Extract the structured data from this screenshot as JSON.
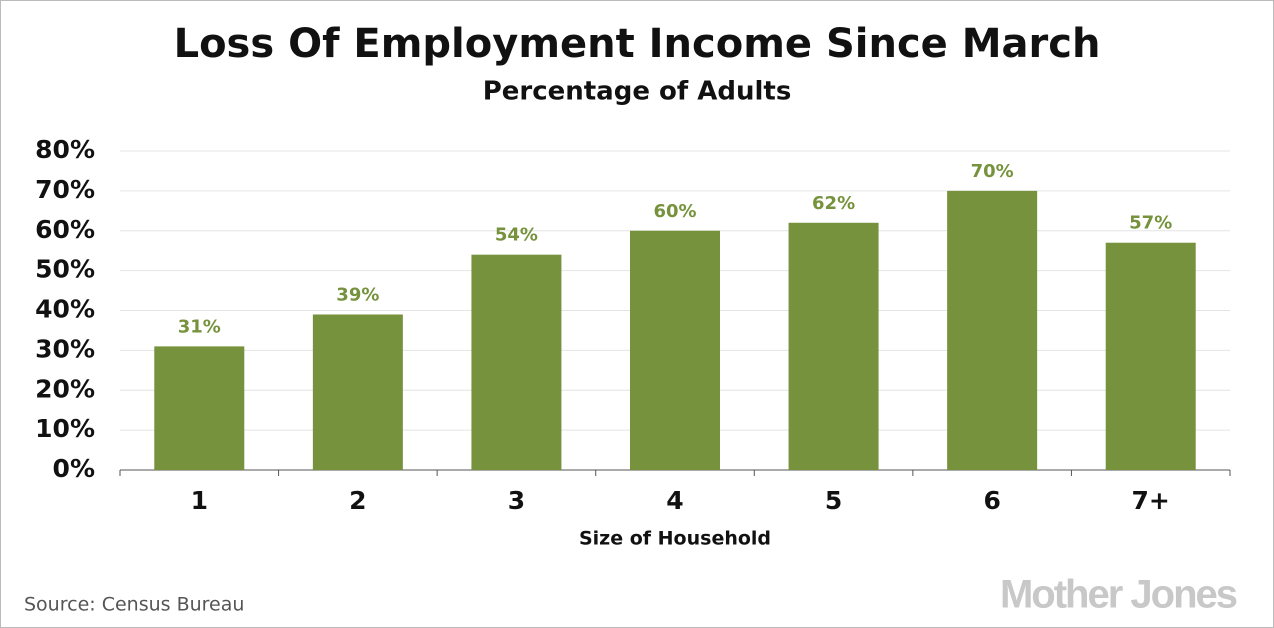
{
  "chart_data": {
    "type": "bar",
    "title": "Loss Of Employment Income Since March",
    "subtitle": "Percentage of Adults",
    "categories": [
      "1",
      "2",
      "3",
      "4",
      "5",
      "6",
      "7+"
    ],
    "values": [
      31,
      39,
      54,
      60,
      62,
      70,
      57
    ],
    "value_labels": [
      "31%",
      "39%",
      "54%",
      "60%",
      "62%",
      "70%",
      "57%"
    ],
    "color": "#76923c",
    "ylim": [
      0,
      80
    ],
    "yticks": [
      {
        "value": 0,
        "label": "0%"
      },
      {
        "value": 10,
        "label": "10%"
      },
      {
        "value": 20,
        "label": "20%"
      },
      {
        "value": 30,
        "label": "30%"
      },
      {
        "value": 40,
        "label": "40%"
      },
      {
        "value": 50,
        "label": "50%"
      },
      {
        "value": 60,
        "label": "60%"
      },
      {
        "value": 70,
        "label": "70%"
      },
      {
        "value": 80,
        "label": "80%"
      }
    ],
    "grid": true,
    "xlabel": "Size of Household",
    "source": "Source: Census Bureau",
    "logo": "Mother Jones"
  }
}
